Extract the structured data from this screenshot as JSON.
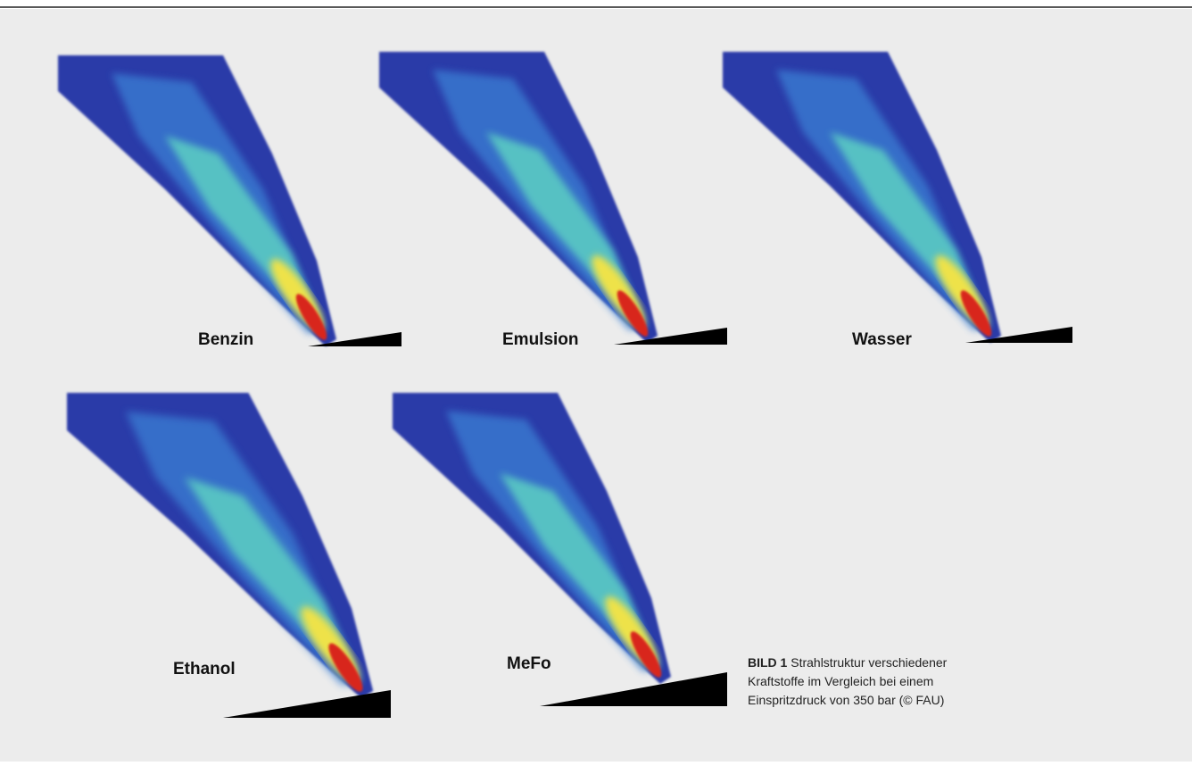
{
  "figure": {
    "panels": [
      {
        "label": "Benzin"
      },
      {
        "label": "Emulsion"
      },
      {
        "label": "Wasser"
      },
      {
        "label": "Ethanol"
      },
      {
        "label": "MeFo"
      }
    ],
    "caption": {
      "label": "BILD 1",
      "lines": [
        "Strahlstruktur verschiedener",
        "Kraftstoffe im Vergleich bei einem",
        "Einspritzdruck von 350 bar (© FAU)"
      ]
    }
  }
}
